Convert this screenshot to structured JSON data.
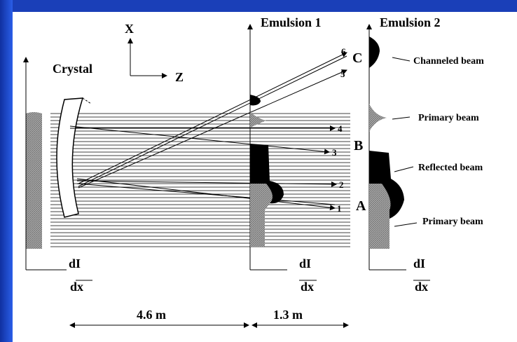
{
  "axes": {
    "x_label": "X",
    "z_label": "Z"
  },
  "labels": {
    "crystal": "Crystal",
    "emulsion1": "Emulsion 1",
    "emulsion2": "Emulsion 2"
  },
  "beams": [
    "Channeled beam",
    "Primary beam",
    "Reflected beam",
    "Primary beam"
  ],
  "regions": [
    "A",
    "B",
    "C"
  ],
  "rays": [
    "1",
    "2",
    "3",
    "4",
    "5",
    "6"
  ],
  "derivatives": [
    {
      "num": "dI",
      "den": "dx"
    },
    {
      "num": "dI",
      "den": "dx"
    },
    {
      "num": "dI",
      "den": "dx"
    }
  ],
  "distances": [
    "4.6 m",
    "1.3 m"
  ]
}
